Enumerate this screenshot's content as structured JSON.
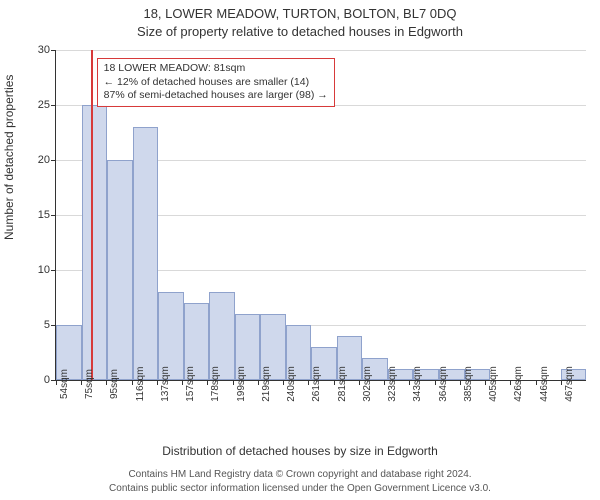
{
  "titles": {
    "line1": "18, LOWER MEADOW, TURTON, BOLTON, BL7 0DQ",
    "line2": "Size of property relative to detached houses in Edgworth"
  },
  "ylabel": "Number of detached properties",
  "xlabel": "Distribution of detached houses by size in Edgworth",
  "captions": {
    "line1": "Contains HM Land Registry data © Crown copyright and database right 2024.",
    "line2": "Contains public sector information licensed under the Open Government Licence v3.0."
  },
  "chart": {
    "type": "histogram",
    "background_color": "#ffffff",
    "grid_color": "#d9d9d9",
    "axis_color": "#333333",
    "bar_fill": "#cfd8ec",
    "bar_border": "#8fa2cc",
    "ylim": [
      0,
      30
    ],
    "ytick_step": 5,
    "yticks": [
      0,
      5,
      10,
      15,
      20,
      25,
      30
    ],
    "xticks": [
      "54sqm",
      "75sqm",
      "95sqm",
      "116sqm",
      "137sqm",
      "157sqm",
      "178sqm",
      "199sqm",
      "219sqm",
      "240sqm",
      "261sqm",
      "281sqm",
      "302sqm",
      "323sqm",
      "343sqm",
      "364sqm",
      "385sqm",
      "405sqm",
      "426sqm",
      "446sqm",
      "467sqm"
    ],
    "values": [
      5,
      25,
      20,
      23,
      8,
      7,
      8,
      6,
      6,
      5,
      3,
      4,
      2,
      1,
      1,
      1,
      1,
      0,
      0,
      0,
      1
    ],
    "bin_width_sqm": 20.65
  },
  "marker": {
    "color": "#d73a3a",
    "value_sqm": 81,
    "start_sqm": 54,
    "end_sqm": 467
  },
  "annotation": {
    "border_color": "#d73a3a",
    "line1": "18 LOWER MEADOW: 81sqm",
    "line2": "← 12% of detached houses are smaller (14)",
    "line3": "87% of semi-detached houses are larger (98) →"
  }
}
